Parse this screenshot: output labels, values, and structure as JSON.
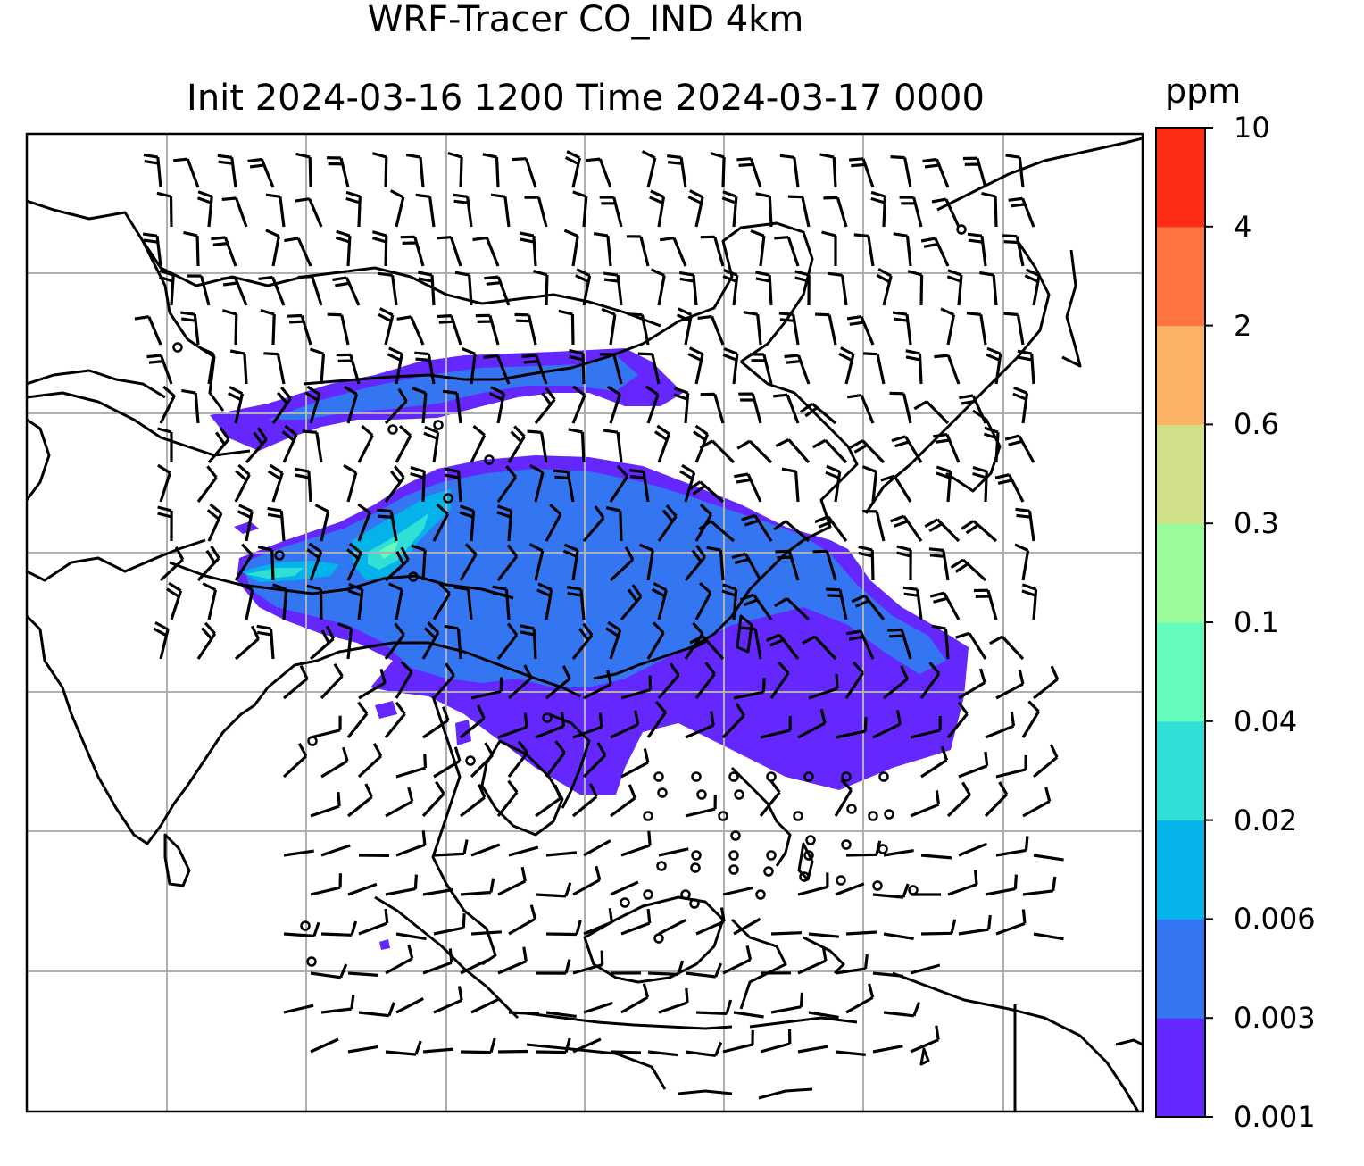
{
  "title": {
    "line1": "WRF-Tracer CO_IND 4km",
    "line2": "Init 2024-03-16 1200 Time 2024-03-17 0000"
  },
  "colorbar": {
    "unit": "ppm",
    "levels": [
      "0.001",
      "0.003",
      "0.006",
      "0.02",
      "0.04",
      "0.1",
      "0.3",
      "0.6",
      "2",
      "4",
      "10"
    ],
    "colors": [
      "#6428ff",
      "#3475f2",
      "#03b3ea",
      "#30dfd5",
      "#64fcba",
      "#99fb9a",
      "#d0e088",
      "#fdb365",
      "#fe7340",
      "#ff2c17"
    ]
  },
  "map": {
    "gridlines": true,
    "coastline_color": "#000000",
    "gridline_color": "#b0b0b0",
    "layers": [
      "co-concentration-fill",
      "coastlines",
      "wind-barbs"
    ]
  }
}
